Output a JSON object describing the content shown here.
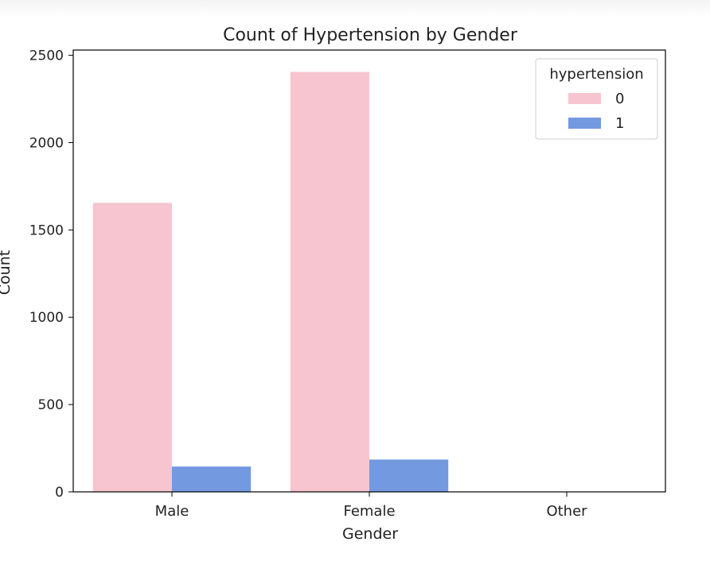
{
  "chart_data": {
    "type": "bar",
    "title": "Count of Hypertension by Gender",
    "xlabel": "Gender",
    "ylabel": "Count",
    "categories": [
      "Male",
      "Female",
      "Other"
    ],
    "series": [
      {
        "name": "0",
        "color": "#f6c5cf",
        "values": [
          1655,
          2405,
          1
        ]
      },
      {
        "name": "1",
        "color": "#7399e0",
        "values": [
          145,
          185,
          0
        ]
      }
    ],
    "ylim": [
      0,
      2530
    ],
    "yticks": [
      0,
      500,
      1000,
      1500,
      2000,
      2500
    ],
    "legend": {
      "title": "hypertension",
      "placement": "top-right"
    },
    "grid": false
  }
}
